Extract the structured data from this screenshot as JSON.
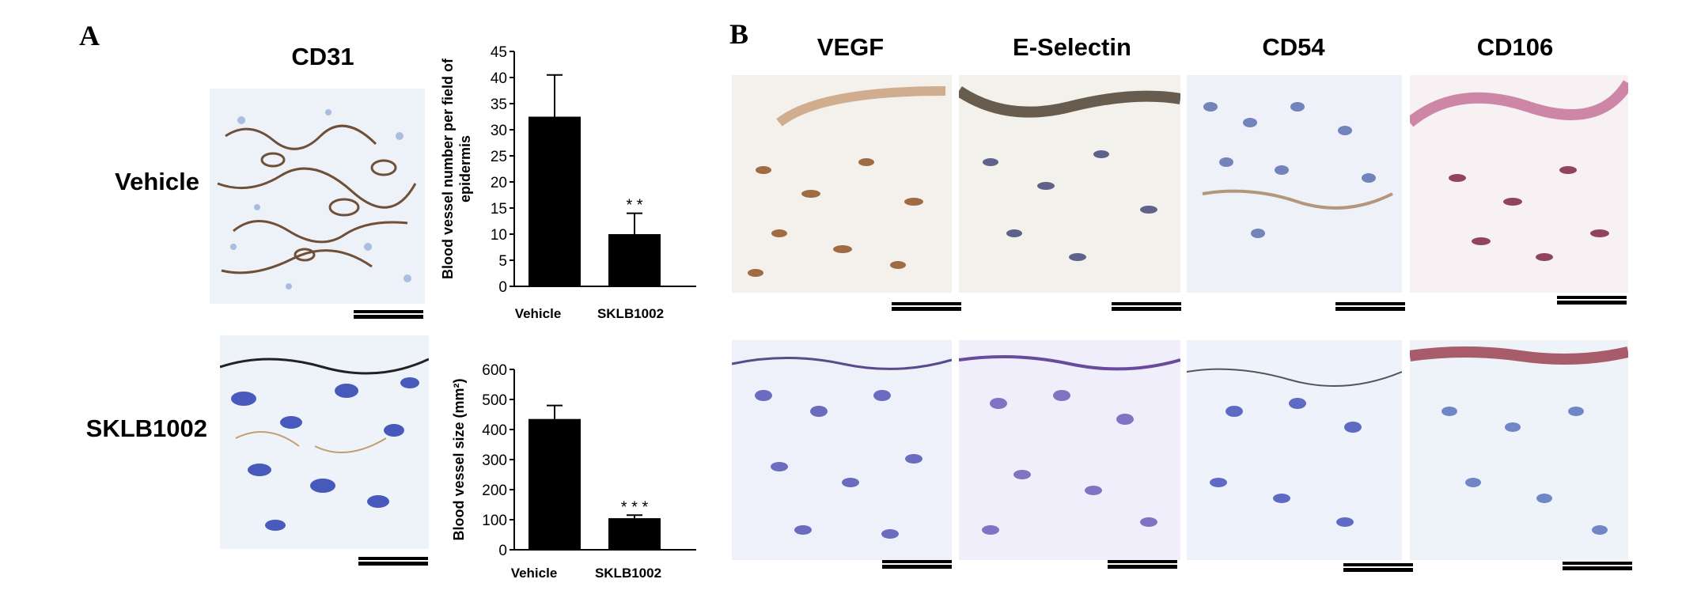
{
  "panels": {
    "a": "A",
    "b": "B"
  },
  "panel_a": {
    "column_title": "CD31",
    "row_labels": {
      "vehicle": "Vehicle",
      "sklb": "SKLB1002"
    }
  },
  "panel_b": {
    "column_titles": [
      "VEGF",
      "E-Selectin",
      "CD54",
      "CD106"
    ]
  },
  "chart_data": [
    {
      "type": "bar",
      "categories": [
        "Vehicle",
        "SKLB1002"
      ],
      "values": [
        32.5,
        10
      ],
      "errors": [
        8,
        4
      ],
      "significance": [
        "",
        "**"
      ],
      "title": "",
      "ylabel": "Blood vessel number per field of epidermis",
      "ylim": [
        0,
        45
      ],
      "yticks": [
        0,
        5,
        10,
        15,
        20,
        25,
        30,
        35,
        40,
        45
      ],
      "grid": false,
      "bar_color": "#000000"
    },
    {
      "type": "bar",
      "categories": [
        "Vehicle",
        "SKLB1002"
      ],
      "values": [
        435,
        105
      ],
      "errors": [
        45,
        10
      ],
      "significance": [
        "",
        "***"
      ],
      "title": "",
      "ylabel": "Blood vessel size (mm²)",
      "ylim": [
        0,
        600
      ],
      "yticks": [
        0,
        100,
        200,
        300,
        400,
        500,
        600
      ],
      "grid": false,
      "bar_color": "#000000"
    }
  ]
}
